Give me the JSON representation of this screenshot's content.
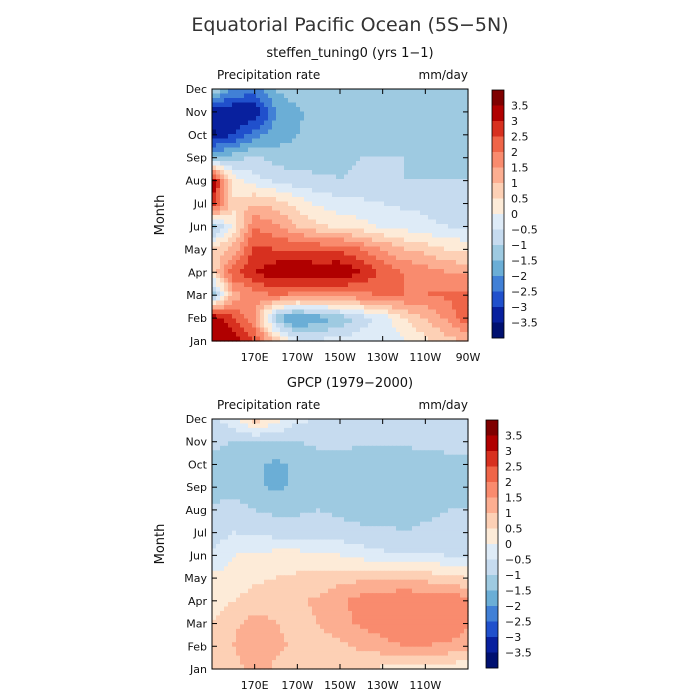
{
  "figure_title": "Equatorial Pacific Ocean (5S−5N)",
  "chart_data": [
    {
      "type": "heatmap",
      "title": "steffen_tuning0 (yrs 1−1)",
      "variable": "Precipitation rate",
      "units": "mm/day",
      "ylabel": "Month",
      "months": [
        "Jan",
        "Feb",
        "Mar",
        "Apr",
        "May",
        "Jun",
        "Jul",
        "Aug",
        "Sep",
        "Oct",
        "Nov",
        "Dec"
      ],
      "x_ticks": [
        "170E",
        "170W",
        "150W",
        "130W",
        "110W",
        "90W"
      ],
      "x_tick_lon": [
        170,
        190,
        210,
        230,
        250,
        270
      ],
      "xlim_lon": [
        150,
        270
      ],
      "colorbar_levels": [
        "3.5",
        "3",
        "2.5",
        "2",
        "1.5",
        "1",
        "0.5",
        "0",
        "−0.5",
        "−1",
        "−1.5",
        "−2",
        "−2.5",
        "−3",
        "−3.5"
      ],
      "lons": [
        150,
        160,
        170,
        180,
        190,
        200,
        210,
        220,
        230,
        240,
        250,
        260,
        270
      ],
      "values": [
        [
          3.2,
          3.5,
          2.4,
          1.0,
          -0.5,
          -0.4,
          -0.3,
          -0.2,
          -0.2,
          -0.1,
          0.4,
          0.8,
          1.0
        ],
        [
          3.5,
          2.5,
          1.6,
          -1.5,
          -2.2,
          -1.8,
          -1.4,
          -0.8,
          -0.3,
          0.5,
          1.0,
          1.6,
          2.5
        ],
        [
          -1.6,
          1.2,
          1.8,
          2.0,
          1.8,
          1.8,
          1.8,
          1.9,
          2.0,
          2.0,
          2.0,
          2.1,
          2.2
        ],
        [
          0.5,
          2.4,
          3.0,
          3.4,
          3.5,
          3.4,
          3.5,
          3.0,
          2.4,
          2.0,
          1.8,
          1.5,
          1.4
        ],
        [
          0.6,
          1.2,
          2.6,
          2.5,
          2.5,
          2.4,
          2.4,
          2.0,
          1.5,
          1.0,
          0.8,
          0.5,
          0.3
        ],
        [
          -1.4,
          0.2,
          2.0,
          1.6,
          1.0,
          0.6,
          0.4,
          0.2,
          -0.1,
          -0.2,
          -0.4,
          -0.5,
          -0.5
        ],
        [
          3.0,
          0.6,
          1.0,
          0.8,
          0.3,
          -0.1,
          -0.3,
          -0.4,
          -0.5,
          -0.6,
          -0.6,
          -0.7,
          -0.7
        ],
        [
          3.5,
          0.3,
          -0.3,
          -0.6,
          -0.8,
          -0.9,
          -1.0,
          -0.9,
          -0.9,
          -1.0,
          -1.0,
          -1.0,
          -1.0
        ],
        [
          -1.4,
          -1.2,
          -0.9,
          -1.2,
          -1.3,
          -1.2,
          -1.1,
          -1.0,
          -1.0,
          -1.0,
          -1.0,
          -1.0,
          -1.0
        ],
        [
          -3.6,
          -3.0,
          -2.2,
          -1.8,
          -1.5,
          -1.3,
          -1.2,
          -1.1,
          -1.1,
          -1.1,
          -1.1,
          -1.0,
          -1.0
        ],
        [
          -3.4,
          -3.5,
          -3.5,
          -2.0,
          -1.6,
          -1.3,
          -1.2,
          -1.1,
          -1.1,
          -1.1,
          -1.1,
          -1.1,
          -1.0
        ],
        [
          -1.0,
          -2.0,
          -2.2,
          -1.4,
          -1.2,
          -1.1,
          -1.0,
          -1.0,
          -1.0,
          -1.0,
          -1.0,
          -1.0,
          -1.0
        ]
      ]
    },
    {
      "type": "heatmap",
      "title": "GPCP (1979−2000)",
      "variable": "Precipitation rate",
      "units": "mm/day",
      "ylabel": "Month",
      "months": [
        "Jan",
        "Feb",
        "Mar",
        "Apr",
        "May",
        "Jun",
        "Jul",
        "Aug",
        "Sep",
        "Oct",
        "Nov",
        "Dec"
      ],
      "x_ticks": [
        "170E",
        "170W",
        "150W",
        "130W",
        "110W"
      ],
      "x_tick_lon": [
        170,
        190,
        210,
        230,
        250
      ],
      "xlim_lon": [
        150,
        270
      ],
      "colorbar_levels": [
        "3.5",
        "3",
        "2.5",
        "2",
        "1.5",
        "1",
        "0.5",
        "0",
        "−0.5",
        "−1",
        "−1.5",
        "−2",
        "−2.5",
        "−3",
        "−3.5"
      ],
      "lons": [
        150,
        160,
        170,
        180,
        190,
        200,
        210,
        220,
        230,
        240,
        250,
        260,
        270
      ],
      "values": [
        [
          0.6,
          0.8,
          1.2,
          0.9,
          0.8,
          0.6,
          0.5,
          0.5,
          0.4,
          0.3,
          0.3,
          0.2,
          0.1
        ],
        [
          0.6,
          1.0,
          1.4,
          1.1,
          0.9,
          0.8,
          0.9,
          1.1,
          1.3,
          1.5,
          1.5,
          1.4,
          1.2
        ],
        [
          0.5,
          0.9,
          1.2,
          1.0,
          0.9,
          1.0,
          1.3,
          1.6,
          1.8,
          2.0,
          2.0,
          1.9,
          1.6
        ],
        [
          0.3,
          0.5,
          0.7,
          0.8,
          0.9,
          1.1,
          1.4,
          1.7,
          1.9,
          2.0,
          2.0,
          1.9,
          1.7
        ],
        [
          0.1,
          0.2,
          0.4,
          0.5,
          0.6,
          0.7,
          0.8,
          0.9,
          0.9,
          0.9,
          0.8,
          0.7,
          0.5
        ],
        [
          -0.4,
          0.0,
          0.1,
          0.2,
          0.2,
          0.1,
          0.0,
          -0.2,
          -0.4,
          -0.5,
          -0.4,
          -0.5,
          -0.6
        ],
        [
          -0.8,
          -0.5,
          -0.6,
          -0.7,
          -0.7,
          -0.7,
          -0.8,
          -0.9,
          -0.9,
          -1.0,
          -0.9,
          -0.9,
          -0.9
        ],
        [
          -0.9,
          -0.8,
          -1.0,
          -1.1,
          -1.1,
          -1.0,
          -1.1,
          -1.2,
          -1.2,
          -1.2,
          -1.1,
          -1.0,
          -1.0
        ],
        [
          -1.3,
          -1.2,
          -1.4,
          -1.6,
          -1.4,
          -1.1,
          -1.2,
          -1.4,
          -1.3,
          -1.3,
          -1.2,
          -1.1,
          -1.1
        ],
        [
          -1.1,
          -1.2,
          -1.4,
          -1.6,
          -1.4,
          -1.2,
          -1.2,
          -1.3,
          -1.3,
          -1.3,
          -1.2,
          -1.1,
          -1.1
        ],
        [
          -0.9,
          -1.0,
          -1.0,
          -1.0,
          -1.0,
          -0.9,
          -0.9,
          -0.9,
          -0.9,
          -0.9,
          -0.9,
          -0.9,
          -0.9
        ],
        [
          -0.6,
          -0.2,
          0.8,
          0.2,
          -0.4,
          -0.5,
          -0.5,
          -0.5,
          -0.5,
          -0.6,
          -0.6,
          -0.6,
          -0.6
        ]
      ]
    }
  ],
  "colors": {
    "levels": [
      "#7f0000",
      "#b00000",
      "#d7301f",
      "#ef6548",
      "#f98b6e",
      "#fcae91",
      "#fdd0b5",
      "#fdebd8",
      "#deebf7",
      "#c6dbef",
      "#9ecae1",
      "#6baed6",
      "#4180d6",
      "#2050cc",
      "#08209e",
      "#001070"
    ]
  }
}
